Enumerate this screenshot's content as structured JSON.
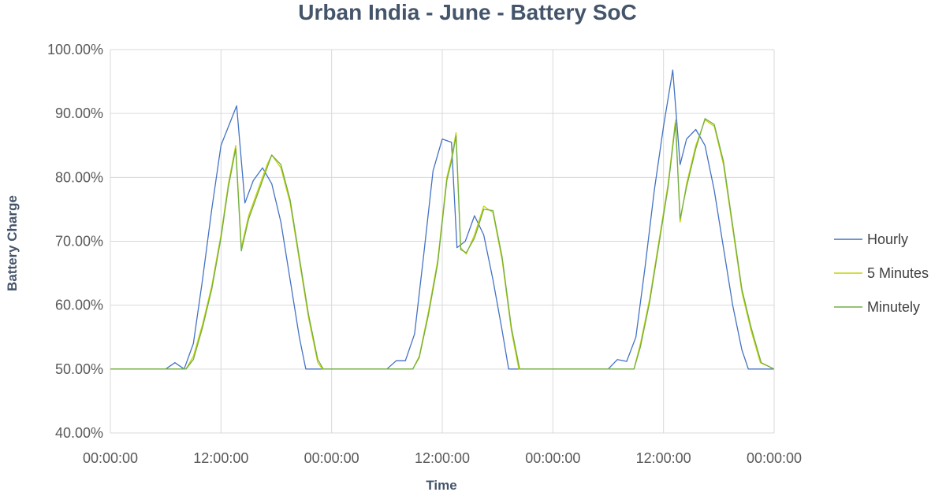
{
  "chart_data": {
    "type": "line",
    "title": "Urban India - June - Battery SoC",
    "xlabel": "Time",
    "ylabel": "Battery Charge",
    "x_unit": "hours",
    "xlim": [
      0,
      72
    ],
    "x_ticks": [
      0,
      12,
      24,
      36,
      48,
      60,
      72
    ],
    "x_tick_labels": [
      "00:00:00",
      "12:00:00",
      "00:00:00",
      "12:00:00",
      "00:00:00",
      "12:00:00",
      "00:00:00"
    ],
    "ylim": [
      40,
      100
    ],
    "y_ticks": [
      40,
      50,
      60,
      70,
      80,
      90,
      100
    ],
    "y_tick_labels": [
      "40.00%",
      "50.00%",
      "60.00%",
      "70.00%",
      "80.00%",
      "90.00%",
      "100.00%"
    ],
    "grid": true,
    "legend_position": "right",
    "series": [
      {
        "name": "Hourly",
        "color": "#4472c4",
        "points": [
          [
            0,
            50
          ],
          [
            6,
            50
          ],
          [
            7,
            51
          ],
          [
            8,
            50
          ],
          [
            9,
            54
          ],
          [
            10,
            64
          ],
          [
            11,
            75
          ],
          [
            12,
            85
          ],
          [
            13.7,
            91.2
          ],
          [
            14.6,
            76
          ],
          [
            15.5,
            79.5
          ],
          [
            16.5,
            81.5
          ],
          [
            17.5,
            79
          ],
          [
            18.5,
            73
          ],
          [
            19.5,
            64
          ],
          [
            20.5,
            55
          ],
          [
            21.2,
            50
          ],
          [
            24,
            50
          ],
          [
            30,
            50
          ],
          [
            31,
            51.3
          ],
          [
            32,
            51.3
          ],
          [
            33,
            55.5
          ],
          [
            34,
            68
          ],
          [
            35,
            81
          ],
          [
            36,
            86
          ],
          [
            37,
            85.5
          ],
          [
            37.6,
            69
          ],
          [
            38.5,
            70
          ],
          [
            39.5,
            74
          ],
          [
            40.5,
            71
          ],
          [
            41.5,
            64
          ],
          [
            42.5,
            56
          ],
          [
            43.2,
            50
          ],
          [
            48,
            50
          ],
          [
            54,
            50
          ],
          [
            55,
            51.5
          ],
          [
            56,
            51.2
          ],
          [
            57,
            55
          ],
          [
            58,
            66
          ],
          [
            59,
            78
          ],
          [
            60,
            88
          ],
          [
            61,
            96.8
          ],
          [
            61.8,
            82
          ],
          [
            62.5,
            86
          ],
          [
            63.5,
            87.5
          ],
          [
            64.5,
            85
          ],
          [
            65.5,
            78
          ],
          [
            66.5,
            69
          ],
          [
            67.5,
            60
          ],
          [
            68.5,
            53
          ],
          [
            69.2,
            50
          ],
          [
            72,
            50
          ]
        ]
      },
      {
        "name": "5 Minutes",
        "color": "#c5d100",
        "points": [
          [
            0,
            50
          ],
          [
            7.5,
            50
          ],
          [
            8.2,
            50
          ],
          [
            9,
            52
          ],
          [
            10,
            57
          ],
          [
            11,
            63
          ],
          [
            12,
            71
          ],
          [
            12.8,
            79
          ],
          [
            13.6,
            85
          ],
          [
            14.2,
            69
          ],
          [
            15,
            74
          ],
          [
            16,
            78
          ],
          [
            17,
            82
          ],
          [
            17.5,
            83.5
          ],
          [
            18.5,
            81.5
          ],
          [
            19.5,
            76
          ],
          [
            20.5,
            67
          ],
          [
            21.5,
            58
          ],
          [
            22.5,
            51
          ],
          [
            23,
            50
          ],
          [
            24,
            50
          ],
          [
            30,
            50
          ],
          [
            32,
            50
          ],
          [
            32.8,
            50
          ],
          [
            33.5,
            52
          ],
          [
            34.5,
            59
          ],
          [
            35.5,
            67
          ],
          [
            36.5,
            80
          ],
          [
            37,
            83
          ],
          [
            37.5,
            87
          ],
          [
            38,
            69
          ],
          [
            38.6,
            68
          ],
          [
            39.5,
            71
          ],
          [
            40.5,
            75.5
          ],
          [
            41.5,
            74.5
          ],
          [
            42.5,
            67
          ],
          [
            43.5,
            56
          ],
          [
            44.3,
            50
          ],
          [
            48,
            50
          ],
          [
            54,
            50
          ],
          [
            56,
            50
          ],
          [
            56.8,
            50
          ],
          [
            57.5,
            54
          ],
          [
            58.5,
            61
          ],
          [
            59.5,
            70
          ],
          [
            60.5,
            79
          ],
          [
            61.3,
            89
          ],
          [
            61.8,
            73
          ],
          [
            62.5,
            79
          ],
          [
            63.5,
            85
          ],
          [
            64.5,
            89
          ],
          [
            65.5,
            88
          ],
          [
            66.5,
            82
          ],
          [
            67.5,
            72
          ],
          [
            68.5,
            62
          ],
          [
            69.5,
            56
          ],
          [
            70.5,
            51
          ],
          [
            72,
            50
          ]
        ]
      },
      {
        "name": "Minutely",
        "color": "#70ad47",
        "points": [
          [
            0,
            50
          ],
          [
            7.5,
            50
          ],
          [
            8.2,
            50
          ],
          [
            9,
            51.5
          ],
          [
            10,
            56.5
          ],
          [
            11,
            62.5
          ],
          [
            12,
            70.5
          ],
          [
            12.8,
            78.5
          ],
          [
            13.6,
            84.5
          ],
          [
            14.2,
            68.5
          ],
          [
            15,
            73.5
          ],
          [
            16,
            77.5
          ],
          [
            17,
            81.5
          ],
          [
            17.5,
            83.5
          ],
          [
            18.5,
            82
          ],
          [
            19.5,
            76.5
          ],
          [
            20.5,
            67.5
          ],
          [
            21.5,
            58.5
          ],
          [
            22.5,
            51.5
          ],
          [
            23.1,
            50
          ],
          [
            24,
            50
          ],
          [
            30,
            50
          ],
          [
            32,
            50
          ],
          [
            32.8,
            50
          ],
          [
            33.5,
            51.8
          ],
          [
            34.5,
            58.5
          ],
          [
            35.5,
            66.5
          ],
          [
            36.5,
            79.5
          ],
          [
            37,
            82.5
          ],
          [
            37.5,
            86.5
          ],
          [
            38,
            68.7
          ],
          [
            38.6,
            68.2
          ],
          [
            39.5,
            70.5
          ],
          [
            40.5,
            75
          ],
          [
            41.5,
            74.8
          ],
          [
            42.5,
            67.5
          ],
          [
            43.5,
            56.5
          ],
          [
            44.4,
            50
          ],
          [
            48,
            50
          ],
          [
            54,
            50
          ],
          [
            56,
            50
          ],
          [
            56.8,
            50
          ],
          [
            57.5,
            53.5
          ],
          [
            58.5,
            60.5
          ],
          [
            59.5,
            69.5
          ],
          [
            60.5,
            78.5
          ],
          [
            61.3,
            88.5
          ],
          [
            61.8,
            73.5
          ],
          [
            62.5,
            78.5
          ],
          [
            63.5,
            84.5
          ],
          [
            64.5,
            89.2
          ],
          [
            65.5,
            88.3
          ],
          [
            66.5,
            82.5
          ],
          [
            67.5,
            72.5
          ],
          [
            68.5,
            62.5
          ],
          [
            69.5,
            56.5
          ],
          [
            70.6,
            51
          ],
          [
            72,
            50
          ]
        ]
      }
    ]
  }
}
